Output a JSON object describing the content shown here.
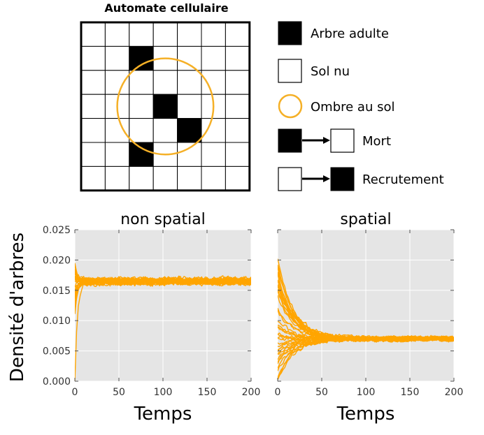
{
  "automaton": {
    "title": "Automate cellulaire",
    "grid_size": 7,
    "tree_cells": [
      [
        1,
        2
      ],
      [
        3,
        3
      ],
      [
        4,
        4
      ],
      [
        5,
        2
      ]
    ],
    "shade_circle": {
      "cx": 3.5,
      "cy": 3.5,
      "r": 2.0
    },
    "shade_color": "#f5b027"
  },
  "legend": {
    "items": [
      {
        "key": "adult",
        "label": "Arbre adulte"
      },
      {
        "key": "bare",
        "label": "Sol nu"
      },
      {
        "key": "shade",
        "label": "Ombre au sol"
      },
      {
        "key": "death",
        "label": "Mort"
      },
      {
        "key": "recruit",
        "label": "Recrutement"
      }
    ]
  },
  "ylabel": "Densité d'arbres",
  "colors": {
    "series": "#ffa500",
    "panel_bg": "#e5e5e5",
    "grid": "#ffffff"
  },
  "chart_data": [
    {
      "type": "line",
      "title": "non spatial",
      "xlabel": "Temps",
      "ylabel": "Densité d'arbres",
      "xlim": [
        0,
        200
      ],
      "ylim": [
        0.0,
        0.025
      ],
      "xticks": [
        "0",
        "50",
        "100",
        "150",
        "200"
      ],
      "yticks": [
        "0.000",
        "0.005",
        "0.010",
        "0.015",
        "0.020",
        "0.025"
      ],
      "grid": true,
      "series_description": "many stochastic replicate runs, all converging quickly to ~0.0165",
      "series": [
        {
          "x": [
            0,
            2,
            5,
            10,
            20,
            50,
            100,
            150,
            200
          ],
          "y": [
            0.0,
            0.01,
            0.014,
            0.016,
            0.0165,
            0.0165,
            0.0165,
            0.0165,
            0.0165
          ]
        },
        {
          "x": [
            0,
            2,
            5,
            10,
            20,
            50,
            100,
            150,
            200
          ],
          "y": [
            0.02,
            0.018,
            0.0172,
            0.0167,
            0.0166,
            0.0165,
            0.0166,
            0.0165,
            0.0166
          ]
        },
        {
          "x": [
            0,
            2,
            5,
            10,
            20,
            50,
            100,
            150,
            200
          ],
          "y": [
            0.012,
            0.014,
            0.0155,
            0.0162,
            0.0164,
            0.0165,
            0.0164,
            0.0166,
            0.0165
          ]
        }
      ]
    },
    {
      "type": "line",
      "title": "spatial",
      "xlabel": "Temps",
      "xlim": [
        0,
        200
      ],
      "ylim": [
        0.0,
        0.025
      ],
      "xticks": [
        "0",
        "50",
        "100",
        "150",
        "200"
      ],
      "grid": true,
      "series_description": "many stochastic replicate runs from varied initial densities, converging to ~0.007 by t≈60",
      "series": [
        {
          "x": [
            0,
            10,
            20,
            40,
            60,
            100,
            150,
            200
          ],
          "y": [
            0.02,
            0.014,
            0.011,
            0.0085,
            0.0072,
            0.007,
            0.007,
            0.007
          ]
        },
        {
          "x": [
            0,
            10,
            20,
            40,
            60,
            100,
            150,
            200
          ],
          "y": [
            0.017,
            0.012,
            0.0095,
            0.0078,
            0.007,
            0.0069,
            0.007,
            0.0071
          ]
        },
        {
          "x": [
            0,
            10,
            20,
            40,
            60,
            100,
            150,
            200
          ],
          "y": [
            0.0005,
            0.003,
            0.0045,
            0.006,
            0.0066,
            0.0069,
            0.007,
            0.0069
          ]
        },
        {
          "x": [
            0,
            10,
            20,
            40,
            60,
            100,
            150,
            200
          ],
          "y": [
            0.004,
            0.005,
            0.0058,
            0.0065,
            0.0068,
            0.007,
            0.0069,
            0.007
          ]
        },
        {
          "x": [
            0,
            10,
            20,
            40,
            60,
            100,
            150,
            200
          ],
          "y": [
            0.008,
            0.0078,
            0.0075,
            0.0072,
            0.007,
            0.007,
            0.007,
            0.007
          ]
        }
      ]
    }
  ]
}
